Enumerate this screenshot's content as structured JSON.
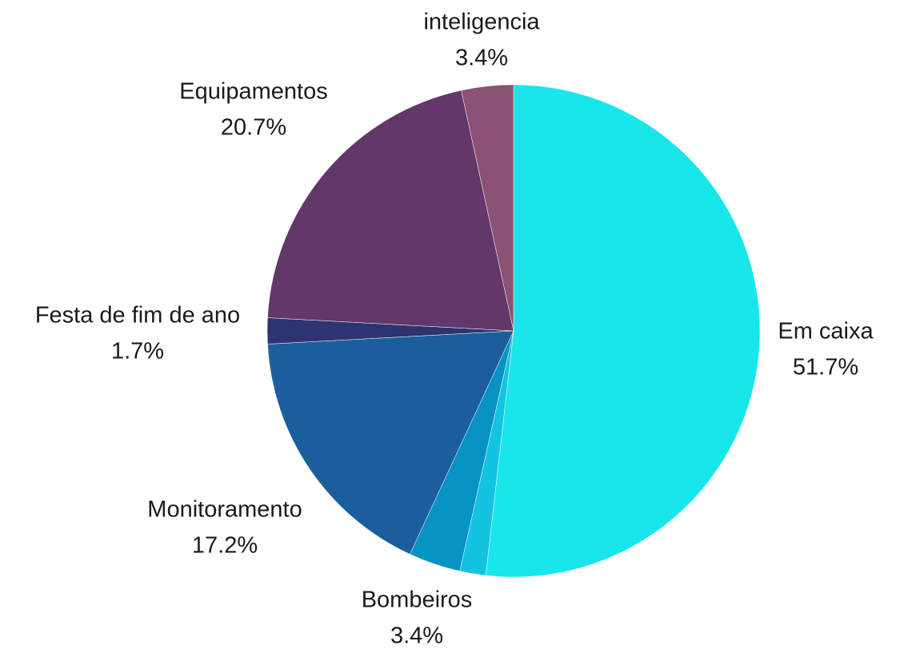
{
  "chart_data": {
    "type": "pie",
    "title": "",
    "slices": [
      {
        "label": "Em caixa",
        "pct_label": "51.7%",
        "value": 51.7,
        "color": "#18e6ea"
      },
      {
        "label": "",
        "pct_label": "",
        "value": 1.7,
        "color": "#13c4e0"
      },
      {
        "label": "Bombeiros",
        "pct_label": "3.4%",
        "value": 3.4,
        "color": "#0792c4"
      },
      {
        "label": "Monitoramento",
        "pct_label": "17.2%",
        "value": 17.2,
        "color": "#1b5e9c"
      },
      {
        "label": "Festa de fim de ano",
        "pct_label": "1.7%",
        "value": 1.7,
        "color": "#2d3470"
      },
      {
        "label": "Equipamentos",
        "pct_label": "20.7%",
        "value": 20.7,
        "color": "#633769"
      },
      {
        "label": "inteligencia",
        "pct_label": "3.4%",
        "value": 3.4,
        "color": "#8c5275"
      }
    ]
  }
}
